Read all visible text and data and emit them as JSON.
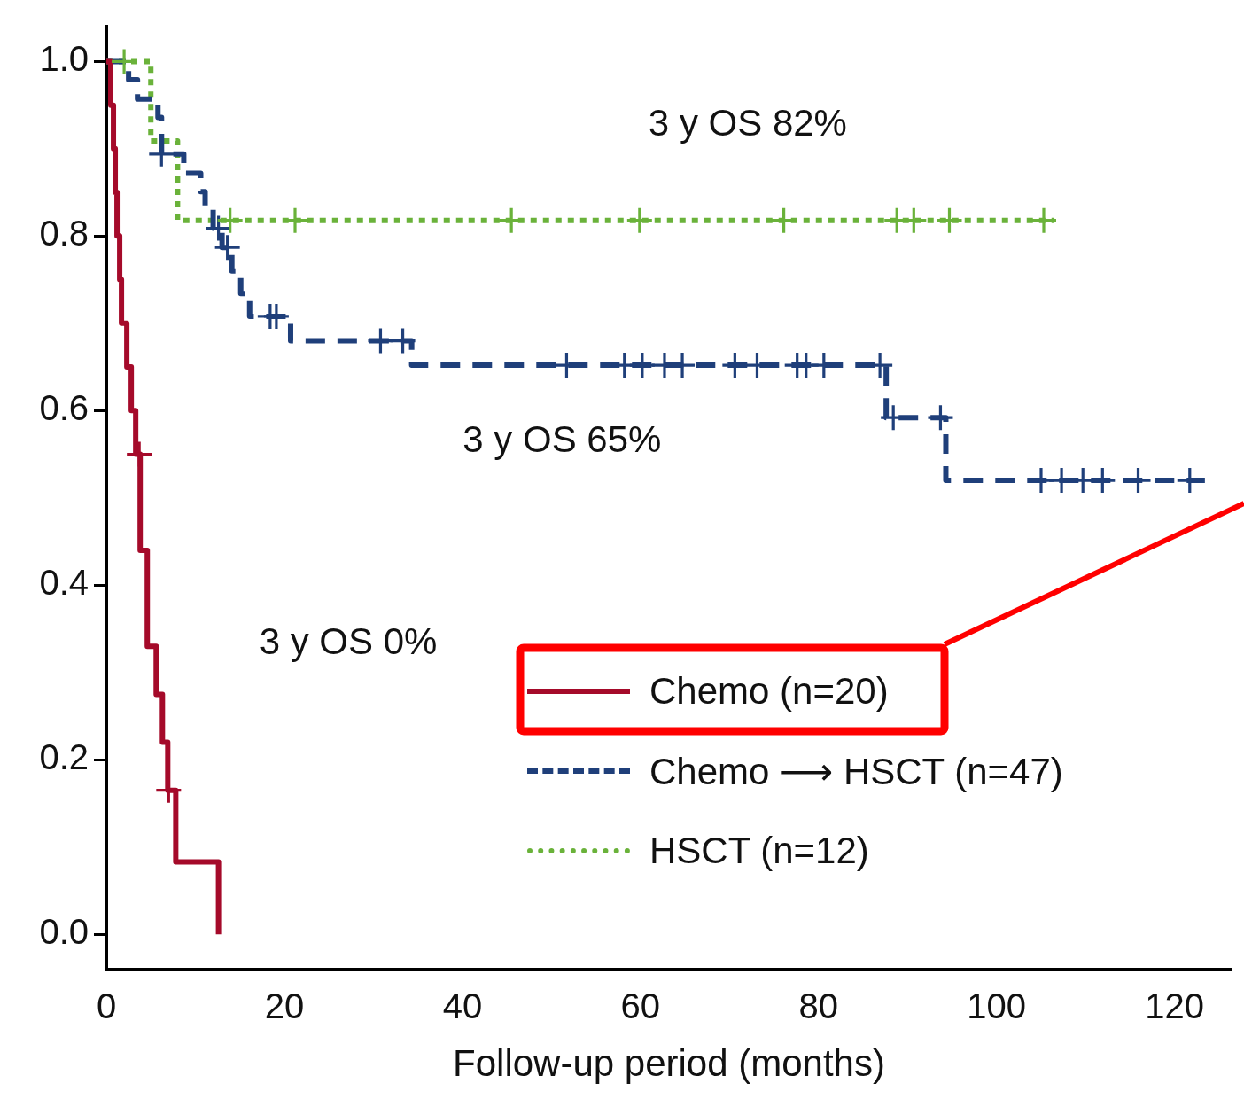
{
  "chart_data": {
    "type": "step",
    "xlabel": "Follow-up period (months)",
    "xlim": [
      0,
      126.4
    ],
    "xticks": [
      0,
      20,
      40,
      60,
      80,
      100,
      120
    ],
    "ylim": [
      -0.04,
      1.04
    ],
    "yticks": [
      {
        "value": 0,
        "label": "0.0"
      },
      {
        "value": 0.2,
        "label": "0.2"
      },
      {
        "value": 0.4,
        "label": "0.4"
      },
      {
        "value": 0.6,
        "label": "0.6"
      },
      {
        "value": 0.8,
        "label": "0.8"
      },
      {
        "value": 1,
        "label": "1.0"
      }
    ],
    "grid": false,
    "legend": "bottom right",
    "annotations": [
      "3 y OS 82%",
      "3 y OS 65%",
      "3 y OS 0%"
    ],
    "series": [
      {
        "name": "Chemo (n=20)",
        "color": "#a50a2a",
        "line_style": "solid",
        "x": [
          0,
          0.5,
          0.8,
          1.0,
          1.2,
          1.5,
          1.7,
          2.3,
          2.8,
          3.3,
          3.8,
          4.6,
          5.6,
          6.3,
          6.9,
          7.8,
          12.6
        ],
        "values": [
          1,
          0.95,
          0.9,
          0.85,
          0.8,
          0.75,
          0.7,
          0.65,
          0.6,
          0.55,
          0.44,
          0.33,
          0.275,
          0.22,
          0.165,
          0.083,
          0
        ]
      },
      {
        "name": "Chemo ⟶ HSCT (n=47)",
        "color": "#1f3f7a",
        "line_style": "dashed",
        "x": [
          0,
          2.5,
          3.5,
          5.8,
          6.2,
          8.7,
          10.6,
          11.1,
          12.0,
          13.0,
          14.1,
          15.1,
          16.1,
          20.7,
          34.3,
          87.6,
          94.3,
          123.4
        ],
        "values": [
          1,
          0.979,
          0.957,
          0.936,
          0.894,
          0.872,
          0.851,
          0.83,
          0.809,
          0.787,
          0.76,
          0.734,
          0.708,
          0.68,
          0.652,
          0.592,
          0.52,
          0.52
        ]
      },
      {
        "name": "HSCT (n=12)",
        "color": "#6ab23a",
        "line_style": "dotted",
        "x": [
          0,
          5.0,
          8.0,
          106.5
        ],
        "values": [
          1,
          0.909,
          0.818,
          0.818
        ]
      },
      {
        "type": "scatter",
        "color": "#a50a2a",
        "marker": "cross",
        "x": [
          3.7,
          7.0
        ],
        "values": [
          0.55,
          0.165
        ]
      },
      {
        "type": "scatter",
        "color": "#1f3f7a",
        "marker": "cross",
        "x": [
          6.2,
          12.6,
          13.6,
          18.4,
          19.1,
          30.8,
          33.3,
          51.7,
          58.2,
          60.2,
          62.7,
          64.7,
          70.6,
          73.1,
          77.6,
          78.6,
          80.6,
          86.9,
          88.4,
          93.7,
          105.0,
          107.3,
          109.7,
          111.9,
          115.9,
          121.7
        ],
        "values": [
          0.894,
          0.809,
          0.787,
          0.708,
          0.708,
          0.68,
          0.68,
          0.652,
          0.652,
          0.652,
          0.652,
          0.652,
          0.652,
          0.652,
          0.652,
          0.652,
          0.652,
          0.652,
          0.592,
          0.592,
          0.52,
          0.52,
          0.52,
          0.52,
          0.52,
          0.52
        ]
      },
      {
        "type": "scatter",
        "color": "#6ab23a",
        "marker": "cross",
        "x": [
          2.0,
          13.9,
          21.2,
          45.5,
          59.9,
          76.1,
          88.8,
          90.7,
          94.7,
          105.3
        ],
        "values": [
          1.0,
          0.818,
          0.818,
          0.818,
          0.818,
          0.818,
          0.818,
          0.818,
          0.818,
          0.818
        ]
      }
    ]
  }
}
